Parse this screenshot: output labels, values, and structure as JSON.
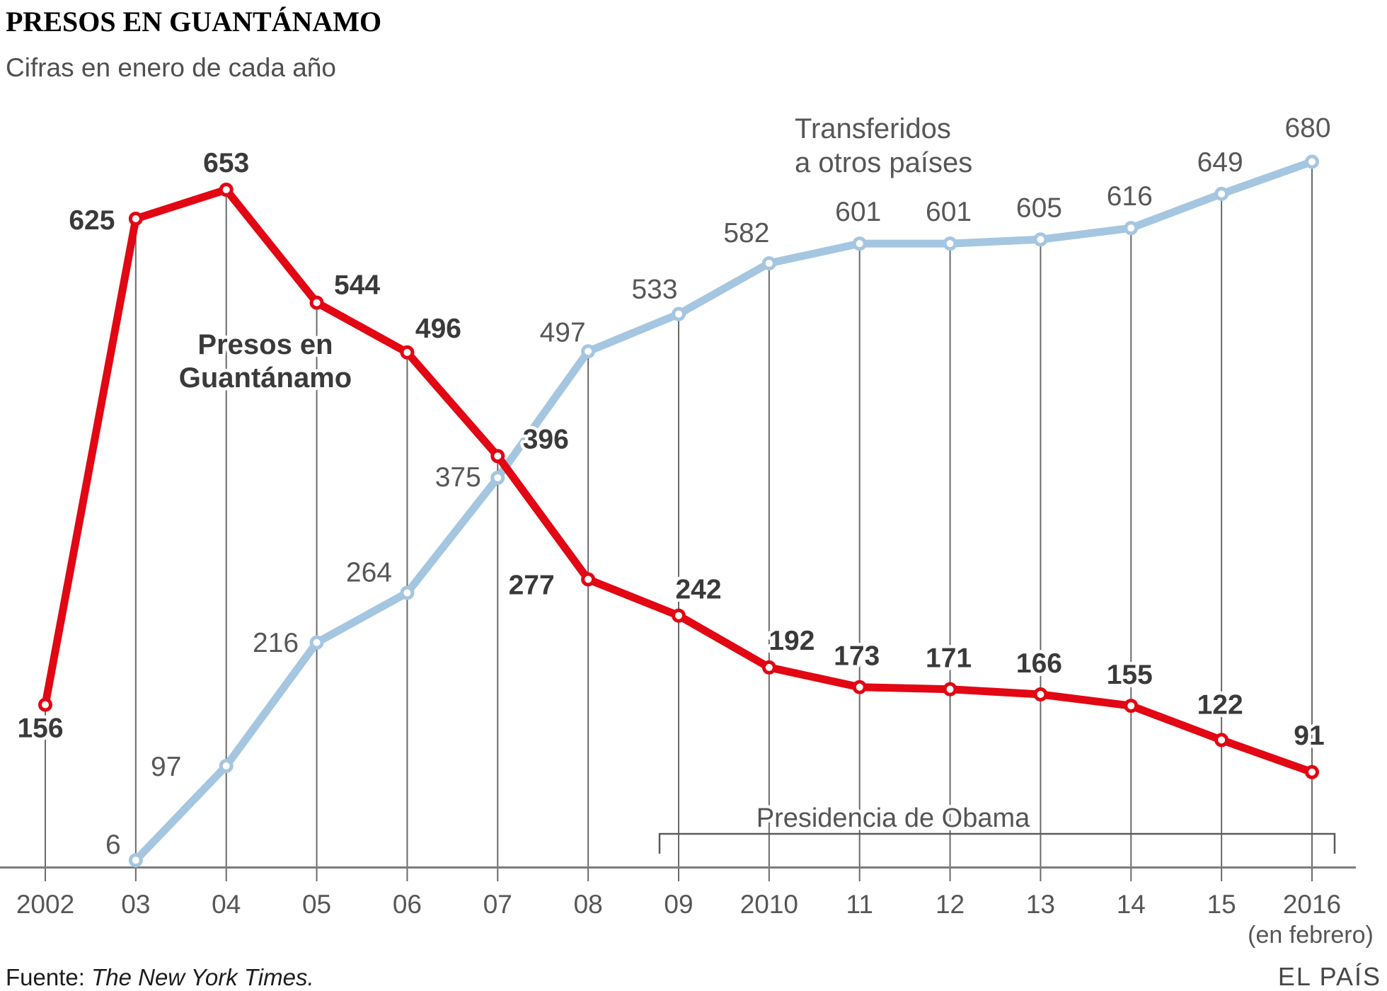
{
  "header": {
    "title": "PRESOS EN GUANTÁNAMO",
    "subtitle": "Cifras en enero de cada año"
  },
  "chart_data": {
    "type": "line",
    "categories": [
      "2002",
      "03",
      "04",
      "05",
      "06",
      "07",
      "08",
      "09",
      "2010",
      "11",
      "12",
      "13",
      "14",
      "15",
      "2016"
    ],
    "x_axis_note": "(en febrero)",
    "ylim": [
      0,
      700
    ],
    "grid": "vertical guide line from each point down to baseline",
    "legend_position": "inline labels next to lines",
    "series": [
      {
        "name": "Presos en Guantánamo",
        "label_lines": [
          "Presos en",
          "Guantánamo"
        ],
        "color": "#e20713",
        "values": [
          156,
          625,
          653,
          544,
          496,
          396,
          277,
          242,
          192,
          173,
          171,
          166,
          155,
          122,
          91
        ]
      },
      {
        "name": "Transferidos a otros países",
        "label_lines": [
          "Transferidos",
          "a otros países"
        ],
        "color": "#a5c6e0",
        "values": [
          null,
          6,
          97,
          216,
          264,
          375,
          497,
          533,
          582,
          601,
          601,
          605,
          616,
          649,
          680
        ]
      }
    ],
    "annotation": {
      "label": "Presidencia de Obama",
      "from_category": "09",
      "to_category": "2016"
    }
  },
  "footer": {
    "source_prefix": "Fuente: ",
    "source": "The New York Times.",
    "credit": "EL PAÍS"
  },
  "colors": {
    "red_line": "#e20713",
    "blue_line": "#a5c6e0",
    "guide_line": "#6a6a6a",
    "axis_line": "#7d7d7d",
    "bracket": "#5a5a5a",
    "red_label": "#3a3a3a",
    "blue_label": "#575757"
  }
}
